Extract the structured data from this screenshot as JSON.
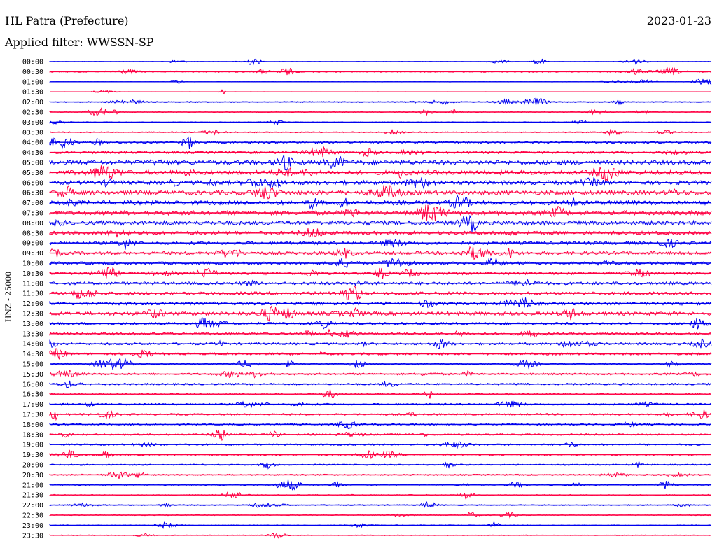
{
  "header": {
    "station": "HL Patra (Prefecture)",
    "date": "2023-01-23",
    "filter": "Applied filter: WWSSN-SP"
  },
  "axis": {
    "channel_label": "HNZ - 25000"
  },
  "traces": {
    "colors": [
      "#0000ee",
      "#ff0044"
    ],
    "labels": [
      "00:00",
      "00:30",
      "01:00",
      "01:30",
      "02:00",
      "02:30",
      "03:00",
      "03:30",
      "04:00",
      "04:30",
      "05:00",
      "05:30",
      "06:00",
      "06:30",
      "07:00",
      "07:30",
      "08:00",
      "08:30",
      "09:00",
      "09:30",
      "10:00",
      "10:30",
      "11:00",
      "11:30",
      "12:00",
      "12:30",
      "13:00",
      "13:30",
      "14:00",
      "14:30",
      "15:00",
      "15:30",
      "16:00",
      "16:30",
      "17:00",
      "17:30",
      "18:00",
      "18:30",
      "19:00",
      "19:30",
      "20:00",
      "20:30",
      "21:00",
      "21:30",
      "22:00",
      "22:30",
      "23:00",
      "23:30"
    ],
    "noise_level": [
      0.4,
      1.0,
      0.3,
      0.3,
      0.8,
      0.6,
      0.5,
      0.8,
      1.5,
      1.8,
      3.0,
      3.0,
      2.8,
      3.0,
      3.0,
      3.0,
      3.0,
      2.5,
      2.2,
      2.2,
      2.0,
      2.0,
      2.0,
      2.2,
      2.2,
      2.5,
      1.8,
      1.8,
      1.6,
      1.6,
      1.4,
      1.4,
      1.3,
      1.3,
      1.3,
      1.3,
      1.2,
      1.2,
      1.2,
      1.2,
      1.0,
      1.0,
      0.9,
      0.8,
      0.8,
      0.6,
      0.6,
      0.6
    ]
  }
}
